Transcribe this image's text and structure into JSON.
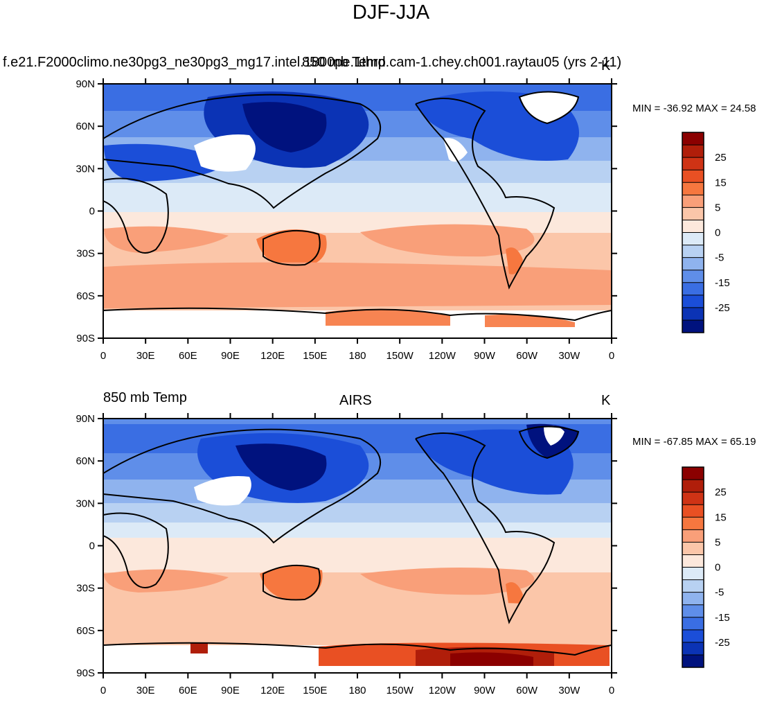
{
  "title": "DJF-JJA",
  "colorbar": {
    "labels": [
      "25",
      "15",
      "5",
      "0",
      "-5",
      "-15",
      "-25"
    ],
    "colors": [
      "#8b0000",
      "#b01e0a",
      "#cf3315",
      "#e95023",
      "#f6773f",
      "#f99f79",
      "#fbc6a9",
      "#fce8dc",
      "#dceaf7",
      "#b8d1f2",
      "#8fb3ee",
      "#5f8ee9",
      "#3a6ee3",
      "#1b4ed8",
      "#0b33b5",
      "#00127e"
    ]
  },
  "axes": {
    "lat_labels": [
      "90N",
      "60N",
      "30N",
      "0",
      "30S",
      "60S",
      "90S"
    ],
    "lon_labels": [
      "0",
      "30E",
      "60E",
      "90E",
      "120E",
      "150E",
      "180",
      "150W",
      "120W",
      "90W",
      "60W",
      "30W",
      "0"
    ]
  },
  "panels": [
    {
      "left_title": "f.e21.F2000climo.ne30pg3_ne30pg3_mg17.intel.1800pe.1thrd.cam-1.chey.ch001.raytau05 (yrs 2-11)",
      "center_title": "850 mb Temp",
      "right_title": "K",
      "min_max": "MIN = -36.92 MAX =  24.58"
    },
    {
      "left_title": "850 mb Temp",
      "center_title": "AIRS",
      "right_title": "K",
      "min_max": "MIN = -67.85 MAX =  65.19"
    }
  ]
}
